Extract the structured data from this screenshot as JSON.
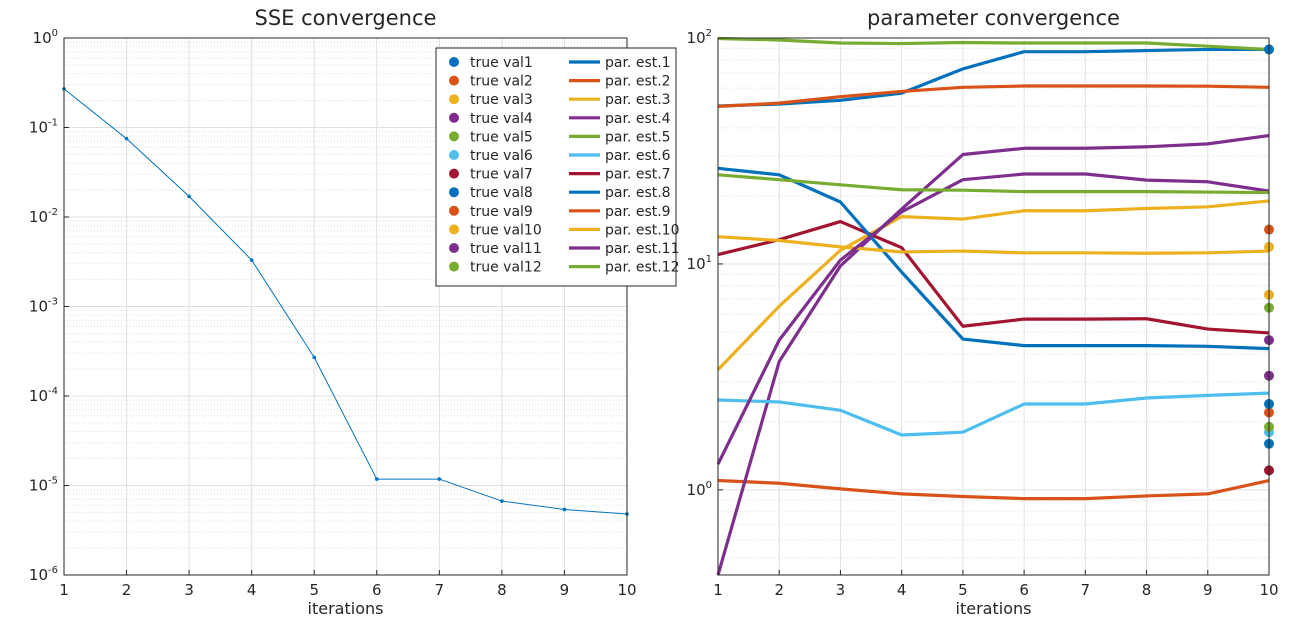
{
  "chart_data": [
    {
      "type": "line",
      "title": "SSE convergence",
      "xlabel": "iterations",
      "ylabel": "",
      "yscale": "log",
      "xlim": [
        1,
        10
      ],
      "ylim": [
        1e-06,
        1
      ],
      "grid": true,
      "x": [
        1,
        2,
        3,
        4,
        5,
        6,
        7,
        8,
        9,
        10
      ],
      "x_ticks": [
        "1",
        "2",
        "3",
        "4",
        "5",
        "6",
        "7",
        "8",
        "9",
        "10"
      ],
      "y_ticks": [
        {
          "base": "10",
          "exp": "0",
          "value": 1
        },
        {
          "base": "10",
          "exp": "-1",
          "value": 0.1
        },
        {
          "base": "10",
          "exp": "-2",
          "value": 0.01
        },
        {
          "base": "10",
          "exp": "-3",
          "value": 0.001
        },
        {
          "base": "10",
          "exp": "-4",
          "value": 0.0001
        },
        {
          "base": "10",
          "exp": "-5",
          "value": 1e-05
        },
        {
          "base": "10",
          "exp": "-6",
          "value": 1e-06
        }
      ],
      "series": [
        {
          "color": "#0072BD",
          "values": [
            0.27,
            0.075,
            0.017,
            0.0033,
            0.00027,
            1.18e-05,
            1.18e-05,
            6.7e-06,
            5.4e-06,
            4.8e-06
          ]
        }
      ]
    },
    {
      "type": "line",
      "title": "parameter convergence",
      "xlabel": "iterations",
      "ylabel": "",
      "yscale": "log",
      "xlim": [
        1,
        10
      ],
      "ylim": [
        0.42,
        100
      ],
      "grid": true,
      "legend_position": "top-right, between the two panels",
      "x": [
        1,
        2,
        3,
        4,
        5,
        6,
        7,
        8,
        9,
        10
      ],
      "x_ticks": [
        "1",
        "2",
        "3",
        "4",
        "5",
        "6",
        "7",
        "8",
        "9",
        "10"
      ],
      "y_ticks": [
        {
          "base": "10",
          "exp": "0",
          "value": 1
        },
        {
          "base": "10",
          "exp": "1",
          "value": 10
        },
        {
          "base": "10",
          "exp": "2",
          "value": 100
        }
      ],
      "series": [
        {
          "name": "par. est.1",
          "color": "#0072BD",
          "values": [
            50,
            51,
            53,
            57,
            73,
            87,
            87,
            88,
            89,
            89
          ]
        },
        {
          "name": "par. est.2",
          "color": "#D95319",
          "values": [
            1.1,
            1.07,
            1.01,
            0.96,
            0.935,
            0.915,
            0.915,
            0.94,
            0.96,
            1.1
          ]
        },
        {
          "name": "par. est.3",
          "color": "#EDB120",
          "values": [
            3.4,
            6.5,
            11.5,
            16.2,
            15.8,
            17.2,
            17.2,
            17.6,
            17.9,
            19
          ]
        },
        {
          "name": "par. est.4",
          "color": "#7E2F8E",
          "values": [
            0.42,
            3.7,
            9.8,
            17.5,
            30.5,
            32.5,
            32.5,
            33,
            34,
            37
          ]
        },
        {
          "name": "par. est.5",
          "color": "#77AC30",
          "values": [
            99.5,
            98,
            95,
            94.5,
            95.5,
            95,
            95,
            95,
            92,
            89
          ]
        },
        {
          "name": "par. est.6",
          "color": "#4DBEEE",
          "values": [
            2.5,
            2.45,
            2.25,
            1.75,
            1.8,
            2.4,
            2.4,
            2.55,
            2.62,
            2.68
          ]
        },
        {
          "name": "par. est.7",
          "color": "#A2142F",
          "values": [
            11,
            12.8,
            15.4,
            11.8,
            5.3,
            5.7,
            5.7,
            5.72,
            5.15,
            4.95
          ]
        },
        {
          "name": "par. est.8",
          "color": "#0072BD",
          "values": [
            26.5,
            24.8,
            18.8,
            9.2,
            4.65,
            4.35,
            4.35,
            4.35,
            4.32,
            4.22
          ]
        },
        {
          "name": "par. est.9",
          "color": "#D95319",
          "values": [
            49.8,
            51.5,
            55,
            58,
            60.5,
            61.3,
            61.3,
            61.3,
            61.2,
            60.5
          ]
        },
        {
          "name": "par. est.10",
          "color": "#EDB120",
          "values": [
            13.2,
            12.7,
            11.9,
            11.3,
            11.4,
            11.2,
            11.2,
            11.15,
            11.2,
            11.4
          ]
        },
        {
          "name": "par. est.11",
          "color": "#7E2F8E",
          "values": [
            1.3,
            4.6,
            10.4,
            17,
            23.6,
            25,
            25,
            23.5,
            23.1,
            21
          ]
        },
        {
          "name": "par. est.12",
          "color": "#77AC30",
          "values": [
            24.8,
            23.6,
            22.4,
            21.3,
            21.2,
            20.9,
            20.9,
            20.9,
            20.8,
            20.7
          ]
        }
      ],
      "true_values": [
        {
          "name": "true val1",
          "color": "#0072BD",
          "x": 10,
          "value": 89
        },
        {
          "name": "true val2",
          "color": "#D95319",
          "x": 10,
          "value": 2.2
        },
        {
          "name": "true val3",
          "color": "#EDB120",
          "x": 10,
          "value": 7.3
        },
        {
          "name": "true val4",
          "color": "#7E2F8E",
          "x": 10,
          "value": 4.6
        },
        {
          "name": "true val5",
          "color": "#77AC30",
          "x": 10,
          "value": 6.4
        },
        {
          "name": "true val6",
          "color": "#4DBEEE",
          "x": 10,
          "value": 1.8
        },
        {
          "name": "true val7",
          "color": "#A2142F",
          "x": 10,
          "value": 1.22
        },
        {
          "name": "true val8",
          "color": "#0072BD",
          "x": 10,
          "value": 2.4
        },
        {
          "name": "true val9",
          "color": "#D95319",
          "x": 10,
          "value": 14.2
        },
        {
          "name": "true val10",
          "color": "#EDB120",
          "x": 10,
          "value": 11.9
        },
        {
          "name": "true val11",
          "color": "#7E2F8E",
          "x": 10,
          "value": 3.2
        },
        {
          "name": "true val12",
          "color": "#77AC30",
          "x": 10,
          "value": 1.9
        },
        {
          "name": "",
          "color": "#0072BD",
          "x": 10,
          "value": 1.6
        }
      ]
    }
  ]
}
